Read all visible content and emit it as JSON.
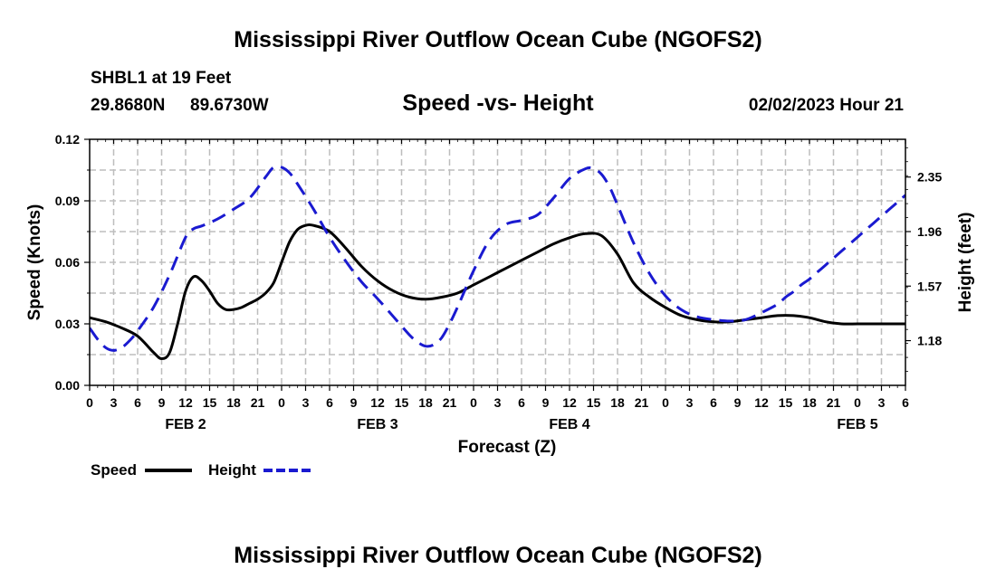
{
  "page_title": "Mississippi River Outflow Ocean Cube (NGOFS2)",
  "station": {
    "name_depth": "SHBL1 at 19 Feet",
    "latitude": "29.8680N",
    "longitude": "89.6730W"
  },
  "timestamp": "02/02/2023 Hour 21",
  "footer_title": "Mississippi River Outflow Ocean Cube (NGOFS2)",
  "chart_data": {
    "type": "line",
    "title": "Speed -vs- Height",
    "xlabel": "Forecast (Z)",
    "ylabel": "Speed (Knots)",
    "y2label": "Height (feet)",
    "xlim": [
      0,
      102
    ],
    "ylim": [
      0,
      0.12
    ],
    "y2lim": [
      0.86,
      2.62
    ],
    "y_ticks": [
      0.0,
      0.03,
      0.06,
      0.09,
      0.12
    ],
    "y_tick_labels": [
      "0.00",
      "0.03",
      "0.06",
      "0.09",
      "0.12"
    ],
    "y2_ticks": [
      1.18,
      1.57,
      1.96,
      2.35
    ],
    "y2_tick_labels": [
      "1.18",
      "1.57",
      "1.96",
      "2.35"
    ],
    "x_ticks": [
      0,
      3,
      6,
      9,
      12,
      15,
      18,
      21,
      24,
      27,
      30,
      33,
      36,
      39,
      42,
      45,
      48,
      51,
      54,
      57,
      60,
      63,
      66,
      69,
      72,
      75,
      78,
      81,
      84,
      87,
      90,
      93,
      96,
      99,
      102
    ],
    "x_tick_labels": [
      "0",
      "3",
      "6",
      "9",
      "12",
      "15",
      "18",
      "21",
      "0",
      "3",
      "6",
      "9",
      "12",
      "15",
      "18",
      "21",
      "0",
      "3",
      "6",
      "9",
      "12",
      "15",
      "18",
      "21",
      "0",
      "3",
      "6",
      "9",
      "12",
      "15",
      "18",
      "21",
      "0",
      "3",
      "6"
    ],
    "day_labels": [
      {
        "label": "FEB 2",
        "x": 12
      },
      {
        "label": "FEB 3",
        "x": 36
      },
      {
        "label": "FEB 4",
        "x": 60
      },
      {
        "label": "FEB 5",
        "x": 96
      }
    ],
    "grid": true,
    "legend_position": "bottom-left",
    "series": [
      {
        "name": "Speed",
        "axis": "left",
        "color": "#000000",
        "dash": "solid",
        "x": [
          0,
          2,
          4,
          6,
          8,
          9,
          10,
          11,
          12,
          13,
          14,
          15,
          16,
          17,
          18,
          19,
          20,
          21,
          22,
          23,
          24,
          25,
          26,
          27,
          28,
          30,
          32,
          34,
          36,
          38,
          40,
          42,
          44,
          46,
          48,
          50,
          52,
          54,
          56,
          58,
          60,
          62,
          64,
          66,
          68,
          70,
          72,
          74,
          76,
          78,
          80,
          82,
          84,
          86,
          88,
          90,
          92,
          94,
          96,
          98,
          100,
          102
        ],
        "values": [
          0.033,
          0.031,
          0.028,
          0.024,
          0.016,
          0.013,
          0.016,
          0.03,
          0.046,
          0.053,
          0.051,
          0.046,
          0.04,
          0.037,
          0.037,
          0.038,
          0.04,
          0.042,
          0.045,
          0.05,
          0.06,
          0.07,
          0.076,
          0.078,
          0.078,
          0.075,
          0.067,
          0.058,
          0.051,
          0.046,
          0.043,
          0.042,
          0.043,
          0.045,
          0.049,
          0.053,
          0.057,
          0.061,
          0.065,
          0.069,
          0.072,
          0.074,
          0.073,
          0.064,
          0.05,
          0.043,
          0.038,
          0.034,
          0.032,
          0.031,
          0.031,
          0.032,
          0.033,
          0.034,
          0.034,
          0.033,
          0.031,
          0.03,
          0.03,
          0.03,
          0.03,
          0.03
        ]
      },
      {
        "name": "Height",
        "axis": "right",
        "color": "#1a1ad0",
        "dash": "dashed",
        "x": [
          0,
          1,
          2,
          3,
          4,
          5,
          6,
          8,
          10,
          12,
          13,
          14,
          16,
          18,
          20,
          22,
          23,
          24,
          25,
          26,
          28,
          30,
          32,
          34,
          36,
          38,
          40,
          41,
          42,
          43,
          44,
          45,
          46,
          48,
          50,
          52,
          54,
          56,
          58,
          60,
          62,
          63,
          64,
          65,
          66,
          68,
          70,
          72,
          74,
          76,
          78,
          80,
          82,
          84,
          86,
          87,
          88,
          89,
          90,
          91,
          92,
          93,
          94,
          95,
          96,
          98,
          100,
          102
        ],
        "values": [
          1.27,
          1.19,
          1.13,
          1.11,
          1.13,
          1.18,
          1.25,
          1.42,
          1.65,
          1.92,
          1.98,
          2.0,
          2.05,
          2.12,
          2.2,
          2.35,
          2.42,
          2.42,
          2.38,
          2.3,
          2.12,
          1.92,
          1.75,
          1.6,
          1.48,
          1.35,
          1.22,
          1.17,
          1.14,
          1.15,
          1.2,
          1.3,
          1.42,
          1.68,
          1.9,
          2.01,
          2.04,
          2.08,
          2.2,
          2.34,
          2.41,
          2.41,
          2.37,
          2.28,
          2.15,
          1.88,
          1.66,
          1.5,
          1.4,
          1.35,
          1.33,
          1.32,
          1.33,
          1.38,
          1.44,
          1.49,
          1.53,
          1.58,
          1.62,
          1.67,
          1.72,
          1.77,
          1.82,
          1.87,
          1.92,
          2.02,
          2.12,
          2.22
        ]
      }
    ]
  },
  "legend": {
    "speed_label": "Speed",
    "height_label": "Height"
  }
}
